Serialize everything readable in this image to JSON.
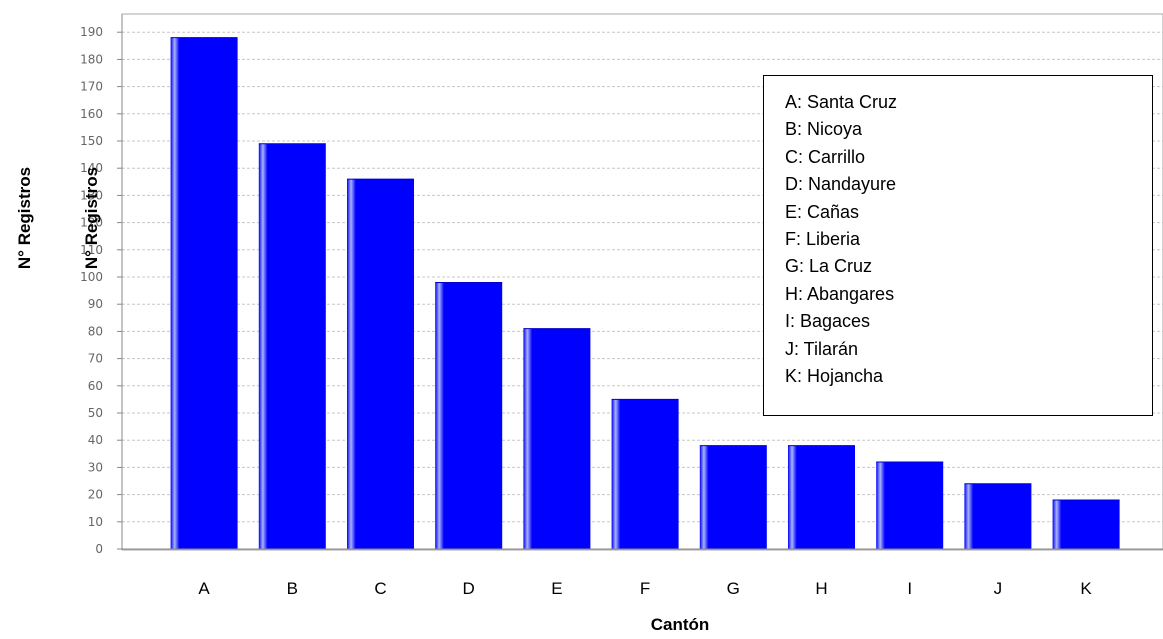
{
  "chart_data": {
    "type": "bar",
    "categories": [
      "A",
      "B",
      "C",
      "D",
      "E",
      "F",
      "G",
      "H",
      "I",
      "J",
      "K"
    ],
    "values": [
      188,
      149,
      136,
      98,
      81,
      55,
      38,
      38,
      32,
      24,
      18
    ],
    "xlabel": "Cantón",
    "ylabel": "N° Registros",
    "ylabel_overlay": "N° Registros",
    "ylim": [
      0,
      195
    ],
    "yticks": [
      0,
      10,
      20,
      30,
      40,
      50,
      60,
      70,
      80,
      90,
      100,
      110,
      120,
      130,
      140,
      150,
      160,
      170,
      180,
      190
    ],
    "grid": true,
    "legend_placement": "top-right",
    "legend_entries": [
      "A: Santa Cruz",
      "B: Nicoya",
      "C: Carrillo",
      "D: Nandayure",
      "E: Cañas",
      "F: Liberia",
      "G: La Cruz",
      "H: Abangares",
      "I: Bagaces",
      "J: Tilarán",
      "K: Hojancha"
    ],
    "colors": {
      "bar": "#0000ff",
      "bar_highlight": "#aab4ff",
      "grid": "#c8c8c8",
      "axis": "#888888"
    }
  }
}
